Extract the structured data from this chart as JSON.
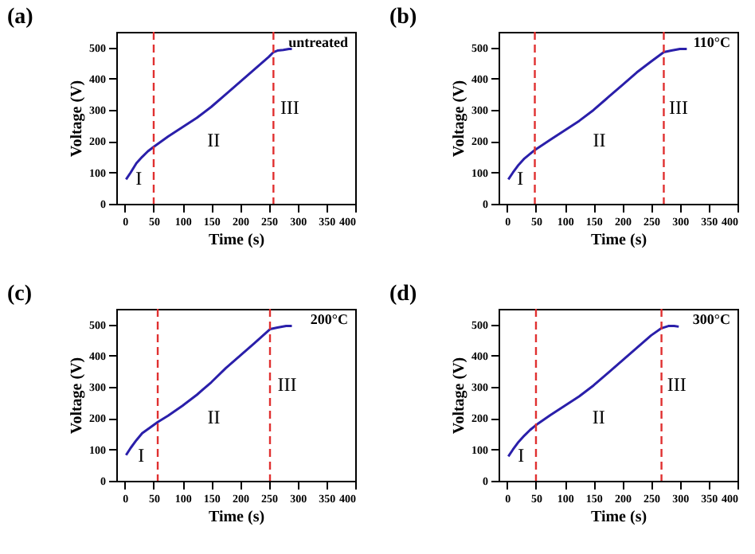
{
  "chart_data": [
    {
      "type": "line",
      "title": "(a)",
      "xlabel": "Time (s)",
      "ylabel": "Voltage (V)",
      "xlim": [
        -15,
        400
      ],
      "ylim": [
        0,
        550
      ],
      "xticks": [
        0,
        50,
        100,
        150,
        200,
        250,
        300,
        350,
        400
      ],
      "yticks": [
        0,
        100,
        200,
        300,
        400,
        500
      ],
      "x": [
        2,
        10,
        20,
        30,
        40,
        50,
        75,
        100,
        125,
        150,
        175,
        200,
        225,
        250,
        258,
        265,
        275,
        285,
        290
      ],
      "series": [
        {
          "color": "#2a1faa",
          "values": [
            78,
            100,
            130,
            150,
            168,
            182,
            215,
            245,
            275,
            310,
            350,
            390,
            430,
            470,
            485,
            490,
            492,
            495,
            495
          ]
        }
      ],
      "ref_lines": [
        {
          "axis": "x",
          "value": 50,
          "color": "#e03030",
          "line_style": "dashed"
        },
        {
          "axis": "x",
          "value": 258,
          "color": "#e03030",
          "line_style": "dashed"
        }
      ],
      "annotations": [
        "I",
        "II",
        "III",
        "untreated"
      ]
    },
    {
      "type": "line",
      "title": "(b)",
      "xlabel": "Time (s)",
      "ylabel": "Voltage (V)",
      "xlim": [
        -15,
        400
      ],
      "ylim": [
        0,
        550
      ],
      "xticks": [
        0,
        50,
        100,
        150,
        200,
        250,
        300,
        350,
        400
      ],
      "yticks": [
        0,
        100,
        200,
        300,
        400,
        500
      ],
      "x": [
        2,
        10,
        20,
        30,
        40,
        48,
        75,
        100,
        125,
        150,
        175,
        200,
        225,
        250,
        272,
        285,
        300,
        312
      ],
      "series": [
        {
          "color": "#2a1faa",
          "values": [
            78,
            100,
            125,
            145,
            160,
            172,
            205,
            235,
            265,
            300,
            340,
            380,
            420,
            455,
            485,
            490,
            495,
            495
          ]
        }
      ],
      "ref_lines": [
        {
          "axis": "x",
          "value": 48,
          "color": "#e03030",
          "line_style": "dashed"
        },
        {
          "axis": "x",
          "value": 272,
          "color": "#e03030",
          "line_style": "dashed"
        }
      ],
      "annotations": [
        "I",
        "II",
        "III",
        "110°C"
      ]
    },
    {
      "type": "line",
      "title": "(c)",
      "xlabel": "Time (s)",
      "ylabel": "Voltage (V)",
      "xlim": [
        -15,
        400
      ],
      "ylim": [
        0,
        550
      ],
      "xticks": [
        0,
        50,
        100,
        150,
        200,
        250,
        300,
        350,
        400
      ],
      "yticks": [
        0,
        100,
        200,
        300,
        400,
        500
      ],
      "x": [
        2,
        10,
        20,
        30,
        45,
        57,
        75,
        100,
        125,
        150,
        175,
        200,
        225,
        252,
        265,
        280,
        290
      ],
      "series": [
        {
          "color": "#2a1faa",
          "values": [
            82,
            105,
            130,
            152,
            172,
            188,
            208,
            240,
            275,
            315,
            360,
            400,
            440,
            485,
            490,
            495,
            495
          ]
        }
      ],
      "ref_lines": [
        {
          "axis": "x",
          "value": 57,
          "color": "#e03030",
          "line_style": "dashed"
        },
        {
          "axis": "x",
          "value": 252,
          "color": "#e03030",
          "line_style": "dashed"
        }
      ],
      "annotations": [
        "I",
        "II",
        "III",
        "200°C"
      ]
    },
    {
      "type": "line",
      "title": "(d)",
      "xlabel": "Time (s)",
      "ylabel": "Voltage (V)",
      "xlim": [
        -15,
        400
      ],
      "ylim": [
        0,
        550
      ],
      "xticks": [
        0,
        50,
        100,
        150,
        200,
        250,
        300,
        350,
        400
      ],
      "yticks": [
        0,
        100,
        200,
        300,
        400,
        500
      ],
      "x": [
        2,
        10,
        20,
        30,
        40,
        50,
        75,
        100,
        125,
        150,
        175,
        200,
        225,
        250,
        268,
        280,
        290,
        298
      ],
      "series": [
        {
          "color": "#2a1faa",
          "values": [
            78,
            100,
            125,
            145,
            163,
            178,
            210,
            240,
            270,
            305,
            345,
            385,
            425,
            465,
            488,
            495,
            495,
            493
          ]
        }
      ],
      "ref_lines": [
        {
          "axis": "x",
          "value": 50,
          "color": "#e03030",
          "line_style": "dashed"
        },
        {
          "axis": "x",
          "value": 268,
          "color": "#e03030",
          "line_style": "dashed"
        }
      ],
      "annotations": [
        "I",
        "II",
        "III",
        "300°C"
      ]
    }
  ]
}
